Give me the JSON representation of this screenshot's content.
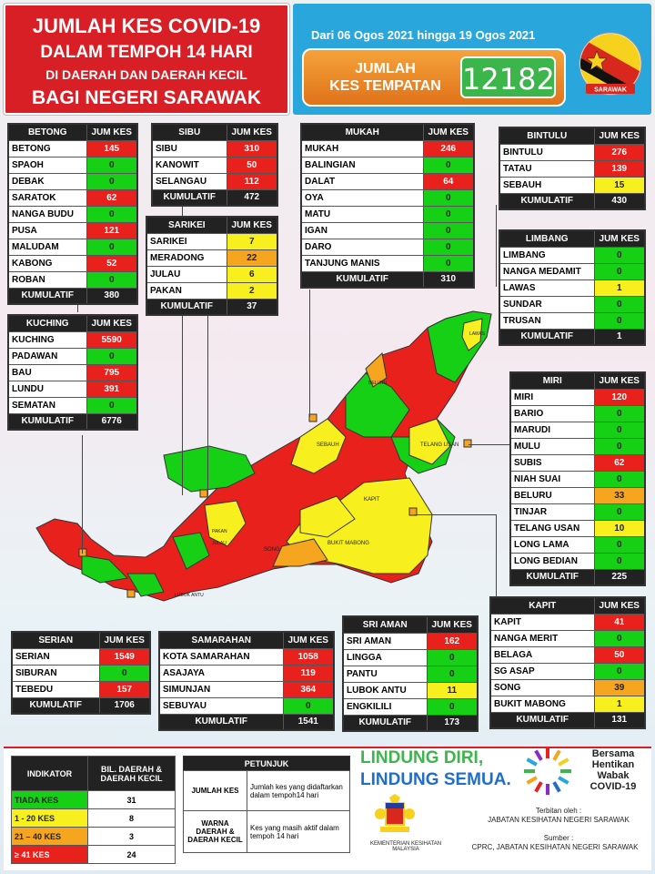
{
  "title": {
    "line1": "JUMLAH KES COVID-19",
    "line2": "DALAM TEMPOH 14 HARI",
    "line3": "DI DAERAH DAN DAERAH KECIL",
    "line4": "BAGI NEGERI SARAWAK"
  },
  "header": {
    "date_range": "Dari 06 Ogos 2021 hingga 19 Ogos 2021",
    "cases_label_1": "JUMLAH",
    "cases_label_2": "KES TEMPATAN",
    "cases_value": "12182",
    "flag_text": "SARAWAK"
  },
  "col_header": "JUM KES",
  "kumulatif_label": "KUMULATIF",
  "colors": {
    "red": "#e8211d",
    "green": "#16d016",
    "yellow": "#f7f01e",
    "orange": "#f5a51e",
    "title_red": "#d81f26",
    "header_blue": "#29a7dc"
  },
  "divisions": {
    "betong": {
      "name": "BETONG",
      "rows": [
        {
          "name": "BETONG",
          "value": "145",
          "color": "red"
        },
        {
          "name": "SPAOH",
          "value": "0",
          "color": "green"
        },
        {
          "name": "DEBAK",
          "value": "0",
          "color": "green"
        },
        {
          "name": "SARATOK",
          "value": "62",
          "color": "red"
        },
        {
          "name": "NANGA BUDU",
          "value": "0",
          "color": "green"
        },
        {
          "name": "PUSA",
          "value": "121",
          "color": "red"
        },
        {
          "name": "MALUDAM",
          "value": "0",
          "color": "green"
        },
        {
          "name": "KABONG",
          "value": "52",
          "color": "red"
        },
        {
          "name": "ROBAN",
          "value": "0",
          "color": "green"
        }
      ],
      "total": "380"
    },
    "sibu": {
      "name": "SIBU",
      "rows": [
        {
          "name": "SIBU",
          "value": "310",
          "color": "red"
        },
        {
          "name": "KANOWIT",
          "value": "50",
          "color": "red"
        },
        {
          "name": "SELANGAU",
          "value": "112",
          "color": "red"
        }
      ],
      "total": "472"
    },
    "mukah": {
      "name": "MUKAH",
      "rows": [
        {
          "name": "MUKAH",
          "value": "246",
          "color": "red"
        },
        {
          "name": "BALINGIAN",
          "value": "0",
          "color": "green"
        },
        {
          "name": "DALAT",
          "value": "64",
          "color": "red"
        },
        {
          "name": "OYA",
          "value": "0",
          "color": "green"
        },
        {
          "name": "MATU",
          "value": "0",
          "color": "green"
        },
        {
          "name": "IGAN",
          "value": "0",
          "color": "green"
        },
        {
          "name": "DARO",
          "value": "0",
          "color": "green"
        },
        {
          "name": "TANJUNG MANIS",
          "value": "0",
          "color": "green"
        }
      ],
      "total": "310"
    },
    "bintulu": {
      "name": "BINTULU",
      "rows": [
        {
          "name": "BINTULU",
          "value": "276",
          "color": "red"
        },
        {
          "name": "TATAU",
          "value": "139",
          "color": "red"
        },
        {
          "name": "SEBAUH",
          "value": "15",
          "color": "yellow"
        }
      ],
      "total": "430"
    },
    "sarikei": {
      "name": "SARIKEI",
      "rows": [
        {
          "name": "SARIKEI",
          "value": "7",
          "color": "yellow"
        },
        {
          "name": "MERADONG",
          "value": "22",
          "color": "orange"
        },
        {
          "name": "JULAU",
          "value": "6",
          "color": "yellow"
        },
        {
          "name": "PAKAN",
          "value": "2",
          "color": "yellow"
        }
      ],
      "total": "37"
    },
    "limbang": {
      "name": "LIMBANG",
      "rows": [
        {
          "name": "LIMBANG",
          "value": "0",
          "color": "green"
        },
        {
          "name": "NANGA MEDAMIT",
          "value": "0",
          "color": "green"
        },
        {
          "name": "LAWAS",
          "value": "1",
          "color": "yellow"
        },
        {
          "name": "SUNDAR",
          "value": "0",
          "color": "green"
        },
        {
          "name": "TRUSAN",
          "value": "0",
          "color": "green"
        }
      ],
      "total": "1"
    },
    "kuching": {
      "name": "KUCHING",
      "rows": [
        {
          "name": "KUCHING",
          "value": "5590",
          "color": "red"
        },
        {
          "name": "PADAWAN",
          "value": "0",
          "color": "green"
        },
        {
          "name": "BAU",
          "value": "795",
          "color": "red"
        },
        {
          "name": "LUNDU",
          "value": "391",
          "color": "red"
        },
        {
          "name": "SEMATAN",
          "value": "0",
          "color": "green"
        }
      ],
      "total": "6776"
    },
    "miri": {
      "name": "MIRI",
      "rows": [
        {
          "name": "MIRI",
          "value": "120",
          "color": "red"
        },
        {
          "name": "BARIO",
          "value": "0",
          "color": "green"
        },
        {
          "name": "MARUDI",
          "value": "0",
          "color": "green"
        },
        {
          "name": "MULU",
          "value": "0",
          "color": "green"
        },
        {
          "name": "SUBIS",
          "value": "62",
          "color": "red"
        },
        {
          "name": "NIAH SUAI",
          "value": "0",
          "color": "green"
        },
        {
          "name": "BELURU",
          "value": "33",
          "color": "orange"
        },
        {
          "name": "TINJAR",
          "value": "0",
          "color": "green"
        },
        {
          "name": "TELANG USAN",
          "value": "10",
          "color": "yellow"
        },
        {
          "name": "LONG LAMA",
          "value": "0",
          "color": "green"
        },
        {
          "name": "LONG BEDIAN",
          "value": "0",
          "color": "green"
        }
      ],
      "total": "225"
    },
    "kapit": {
      "name": "KAPIT",
      "rows": [
        {
          "name": "KAPIT",
          "value": "41",
          "color": "red"
        },
        {
          "name": "NANGA MERIT",
          "value": "0",
          "color": "green"
        },
        {
          "name": "BELAGA",
          "value": "50",
          "color": "red"
        },
        {
          "name": "SG ASAP",
          "value": "0",
          "color": "green"
        },
        {
          "name": "SONG",
          "value": "39",
          "color": "orange"
        },
        {
          "name": "BUKIT MABONG",
          "value": "1",
          "color": "yellow"
        }
      ],
      "total": "131"
    },
    "serian": {
      "name": "SERIAN",
      "rows": [
        {
          "name": "SERIAN",
          "value": "1549",
          "color": "red"
        },
        {
          "name": "SIBURAN",
          "value": "0",
          "color": "green"
        },
        {
          "name": "TEBEDU",
          "value": "157",
          "color": "red"
        }
      ],
      "total": "1706"
    },
    "samarahan": {
      "name": "SAMARAHAN",
      "rows": [
        {
          "name": "KOTA SAMARAHAN",
          "value": "1058",
          "color": "red"
        },
        {
          "name": "ASAJAYA",
          "value": "119",
          "color": "red"
        },
        {
          "name": "SIMUNJAN",
          "value": "364",
          "color": "red"
        },
        {
          "name": "SEBUYAU",
          "value": "0",
          "color": "green"
        }
      ],
      "total": "1541"
    },
    "sri_aman": {
      "name": "SRI AMAN",
      "rows": [
        {
          "name": "SRI AMAN",
          "value": "162",
          "color": "red"
        },
        {
          "name": "LINGGA",
          "value": "0",
          "color": "green"
        },
        {
          "name": "PANTU",
          "value": "0",
          "color": "green"
        },
        {
          "name": "LUBOK ANTU",
          "value": "11",
          "color": "yellow"
        },
        {
          "name": "ENGKILILI",
          "value": "0",
          "color": "green"
        }
      ],
      "total": "173"
    }
  },
  "map_labels": {
    "song": "SONG",
    "bukit_mabong": "BUKIT MABONG",
    "telang_usan": "TELANG USAN",
    "sebauh": "SEBAUH",
    "beluru": "BELURU",
    "lubok_antu": "LUBOK ANTU",
    "pakan": "PAKAN",
    "julau": "JULAU",
    "lawas": "LAWAS",
    "kapit": "KAPIT"
  },
  "legend": {
    "indicator_header": "INDIKATOR",
    "count_header": "BIL. DAERAH & DAERAH KECIL",
    "rows": [
      {
        "label": "TIADA KES",
        "count": "31",
        "color": "green"
      },
      {
        "label": "1 - 20 KES",
        "count": "8",
        "color": "yellow"
      },
      {
        "label": "21 – 40 KES",
        "count": "3",
        "color": "orange"
      },
      {
        "label": "≥ 41 KES",
        "count": "24",
        "color": "red"
      }
    ]
  },
  "petunjuk": {
    "header": "PETUNJUK",
    "rows": [
      {
        "key": "JUMLAH KES",
        "desc": "Jumlah kes yang didaftarkan dalam tempoh14 hari"
      },
      {
        "key": "WARNA DAERAH & DAERAH KECIL",
        "desc": "Kes yang masih aktif dalam tempoh 14 hari"
      }
    ]
  },
  "footer": {
    "slogan_1": "LINDUNG DIRI,",
    "slogan_2": "LINDUNG SEMUA.",
    "campaign_1": "Bersama",
    "campaign_2": "Hentikan",
    "campaign_3": "Wabak",
    "campaign_4": "COVID-19",
    "published_label": "Terbitan oleh :",
    "publisher": "JABATAN KESIHATAN NEGERI SARAWAK",
    "source_label": "Sumber :",
    "source": "CPRC, JABATAN KESIHATAN NEGERI SARAWAK",
    "ministry_1": "KEMENTERIAN KESIHATAN",
    "ministry_2": "MALAYSIA"
  }
}
